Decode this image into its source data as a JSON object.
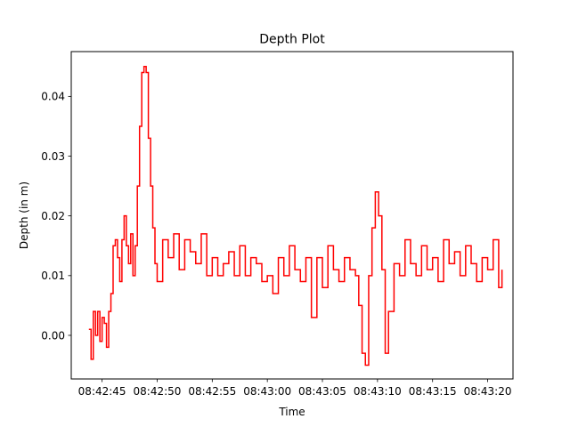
{
  "chart_data": {
    "type": "line",
    "title": "Depth Plot",
    "xlabel": "Time",
    "ylabel": "Depth (in m)",
    "x_type": "time",
    "xlim": [
      "08:42:42.2",
      "08:43:22.3"
    ],
    "ylim": [
      -0.0073,
      0.0475
    ],
    "x_ticks": [
      "08:42:45",
      "08:42:50",
      "08:42:55",
      "08:43:00",
      "08:43:05",
      "08:43:10",
      "08:43:15",
      "08:43:20"
    ],
    "y_ticks": [
      0.0,
      0.01,
      0.02,
      0.03,
      0.04
    ],
    "y_tick_labels": [
      "0.00",
      "0.01",
      "0.02",
      "0.03",
      "0.04"
    ],
    "grid": false,
    "step": true,
    "series": [
      {
        "color": "#ff0000",
        "x": [
          "08:42:43.8",
          "08:42:44.0",
          "08:42:44.2",
          "08:42:44.4",
          "08:42:44.6",
          "08:42:44.8",
          "08:42:45.0",
          "08:42:45.2",
          "08:42:45.4",
          "08:42:45.6",
          "08:42:45.8",
          "08:42:46.0",
          "08:42:46.2",
          "08:42:46.4",
          "08:42:46.6",
          "08:42:46.8",
          "08:42:47.0",
          "08:42:47.2",
          "08:42:47.4",
          "08:42:47.6",
          "08:42:47.8",
          "08:42:48.0",
          "08:42:48.2",
          "08:42:48.4",
          "08:42:48.6",
          "08:42:48.8",
          "08:42:49.0",
          "08:42:49.2",
          "08:42:49.4",
          "08:42:49.6",
          "08:42:49.8",
          "08:42:50.0",
          "08:42:50.5",
          "08:42:51.0",
          "08:42:51.5",
          "08:42:52.0",
          "08:42:52.5",
          "08:42:53.0",
          "08:42:53.5",
          "08:42:54.0",
          "08:42:54.5",
          "08:42:55.0",
          "08:42:55.5",
          "08:42:56.0",
          "08:42:56.5",
          "08:42:57.0",
          "08:42:57.5",
          "08:42:58.0",
          "08:42:58.5",
          "08:42:59.0",
          "08:42:59.5",
          "08:43:00.0",
          "08:43:00.5",
          "08:43:01.0",
          "08:43:01.5",
          "08:43:02.0",
          "08:43:02.5",
          "08:43:03.0",
          "08:43:03.5",
          "08:43:04.0",
          "08:43:04.5",
          "08:43:05.0",
          "08:43:05.5",
          "08:43:06.0",
          "08:43:06.5",
          "08:43:07.0",
          "08:43:07.5",
          "08:43:08.0",
          "08:43:08.3",
          "08:43:08.6",
          "08:43:08.9",
          "08:43:09.2",
          "08:43:09.5",
          "08:43:09.8",
          "08:43:10.1",
          "08:43:10.4",
          "08:43:10.7",
          "08:43:11.0",
          "08:43:11.5",
          "08:43:12.0",
          "08:43:12.5",
          "08:43:13.0",
          "08:43:13.5",
          "08:43:14.0",
          "08:43:14.5",
          "08:43:15.0",
          "08:43:15.5",
          "08:43:16.0",
          "08:43:16.5",
          "08:43:17.0",
          "08:43:17.5",
          "08:43:18.0",
          "08:43:18.5",
          "08:43:19.0",
          "08:43:19.5",
          "08:43:20.0",
          "08:43:20.5",
          "08:43:21.0",
          "08:43:21.3"
        ],
        "y": [
          0.001,
          -0.004,
          0.004,
          0.0,
          0.004,
          -0.001,
          0.003,
          0.002,
          -0.002,
          0.004,
          0.007,
          0.015,
          0.016,
          0.013,
          0.009,
          0.016,
          0.02,
          0.015,
          0.012,
          0.017,
          0.01,
          0.015,
          0.025,
          0.035,
          0.044,
          0.045,
          0.044,
          0.033,
          0.025,
          0.018,
          0.012,
          0.009,
          0.016,
          0.013,
          0.017,
          0.011,
          0.016,
          0.014,
          0.012,
          0.017,
          0.01,
          0.013,
          0.01,
          0.012,
          0.014,
          0.01,
          0.015,
          0.01,
          0.013,
          0.012,
          0.009,
          0.01,
          0.007,
          0.013,
          0.01,
          0.015,
          0.011,
          0.009,
          0.013,
          0.003,
          0.013,
          0.008,
          0.015,
          0.011,
          0.009,
          0.013,
          0.011,
          0.01,
          0.005,
          -0.003,
          -0.005,
          0.01,
          0.018,
          0.024,
          0.02,
          0.011,
          -0.003,
          0.004,
          0.012,
          0.01,
          0.016,
          0.012,
          0.01,
          0.015,
          0.011,
          0.013,
          0.009,
          0.016,
          0.012,
          0.014,
          0.01,
          0.015,
          0.012,
          0.009,
          0.013,
          0.011,
          0.016,
          0.008,
          0.011
        ]
      }
    ]
  }
}
